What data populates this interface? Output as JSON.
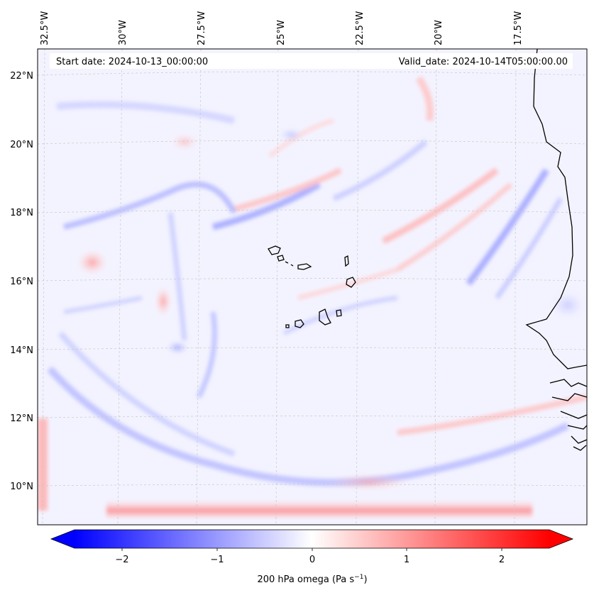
{
  "header": {
    "start_date": "Start date: 2024-10-13_00:00:00",
    "valid_date": "Valid_date: 2024-10-14T05:00:00.00"
  },
  "map": {
    "field": "200 hPa omega",
    "colormap": "bwr",
    "lon_labels": [
      "32.5°W",
      "30°W",
      "27.5°W",
      "25°W",
      "22.5°W",
      "20°W",
      "17.5°W"
    ],
    "lat_labels": [
      "22°N",
      "20°N",
      "18°N",
      "16°N",
      "14°N",
      "12°N",
      "10°N"
    ],
    "gridlines": true
  },
  "colorbar": {
    "ticks": [
      "−2",
      "−1",
      "0",
      "1",
      "2"
    ],
    "range": [
      -2.6,
      2.6
    ],
    "label_main": "200 hPa omega (Pa s",
    "label_sup": "−1",
    "label_close": ")",
    "min_color": "#0000ff",
    "mid_color": "#ffffff",
    "max_color": "#ff0000"
  }
}
